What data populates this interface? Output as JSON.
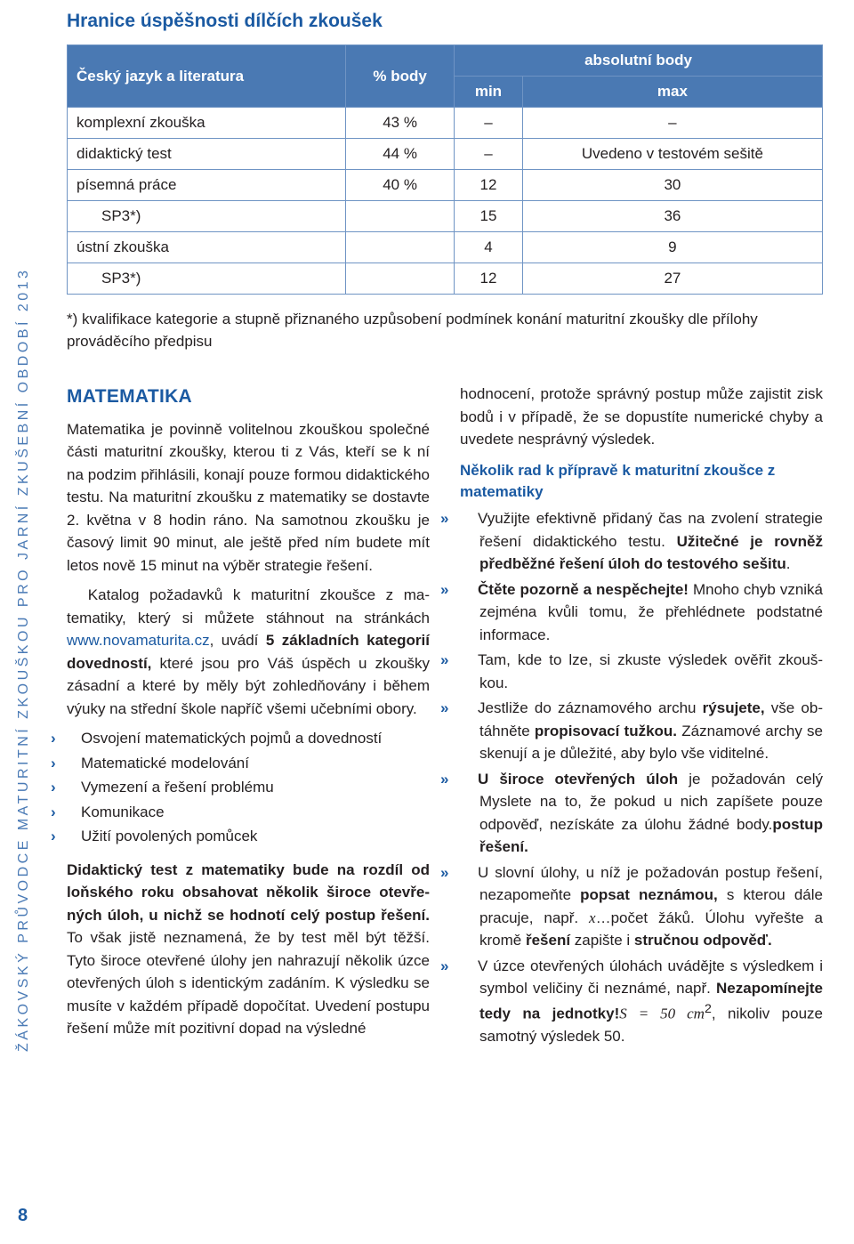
{
  "sidebar": "ŽÁKOVSKÝ PRŮVODCE MATURITNÍ ZKOUŠKOU PRO JARNÍ ZKUŠEBNÍ OBDOBÍ 2013",
  "page_number": "8",
  "section_title": "Hranice úspěšnosti dílčích zkoušek",
  "table": {
    "header_color": "#4a79b3",
    "border_color": "#6f94c4",
    "head": {
      "col1": "Český jazyk a literatura",
      "col2": "% body",
      "col3_top": "absolutní body",
      "col3_min": "min",
      "col3_max": "max"
    },
    "rows": [
      {
        "label": "komplexní zkouška",
        "pct": "43 %",
        "min": "–",
        "max": "–",
        "indent": false
      },
      {
        "label": "didaktický test",
        "pct": "44 %",
        "min": "–",
        "max": "Uvedeno v testovém sešitě",
        "indent": false
      },
      {
        "label": "písemná práce",
        "pct": "40 %",
        "min": "12",
        "max": "30",
        "indent": false
      },
      {
        "label": "SP3*)",
        "pct": "",
        "min": "15",
        "max": "36",
        "indent": true
      },
      {
        "label": "ústní zkouška",
        "pct": "",
        "min": "4",
        "max": "9",
        "indent": false
      },
      {
        "label": "SP3*)",
        "pct": "",
        "min": "12",
        "max": "27",
        "indent": true
      }
    ]
  },
  "footnote": "*) kvalifikace kategorie a stupně přiznaného uzpůsobení podmínek konání maturitní zkoušky dle přílohy prováděcího předpisu",
  "left": {
    "heading": "MATEMATIKA",
    "p1a": "Matematika je povinně volitelnou zkouškou spo­lečné části maturitní zkoušky, kterou ti z Vás, kteří se k ní na podzim přihlásili, konají pouze formou didak­tického testu. Na maturitní zkoušku z matematiky se dostavte 2. května v 8 hodin ráno. Na samotnou zkoušku je časový limit 90 minut, ale ještě před ním budete mít letos nově 15 minut na výběr strategie řešení.",
    "p1b_pre": "Katalog požadavků k maturitní zkoušce z ma­tematiky, který si můžete stáhnout na stránkách ",
    "p1b_link": "www.novamaturita.cz",
    "p1b_post1": ", uvádí ",
    "p1b_bold": "5 základních katego­rií dovedností,",
    "p1b_post2": " které jsou pro Váš úspěch u zkoušky zásadní a které by měly být zohledňovány i během výuky na střední škole napříč všemi učebními obory.",
    "bullets": [
      "Osvojení matematických pojmů a dovedností",
      "Matematické modelování",
      "Vymezení a řešení problému",
      "Komunikace",
      "Užití povolených pomůcek"
    ],
    "p2_bold": "Didaktický test z matematiky bude na rozdíl od loňského roku obsahovat několik široce otevře­ných úloh, u nichž se hodnotí celý postup řešení.",
    "p2_rest": " To však jistě neznamená, že by test měl být těžší. Tyto široce otevřené úlohy jen nahrazují několik úzce otevřených úloh s identickým zadáním. K výsledku se musíte v každém případě dopočítat. Uvedení po­stupu řešení může mít pozitivní dopad na výsledné"
  },
  "right": {
    "p_cont": "hodnocení, protože správný postup může zajistit zisk bodů i v případě, že se dopustíte numerické chyby a uvedete nesprávný výsledek.",
    "subhead": "Několik rad k přípravě k maturitní zkoušce z matematiky",
    "tips": [
      {
        "pre": "Využijte efektivně přidaný čas na zvolení strate­gie řešení didaktického testu. ",
        "bold": "Užitečné je rovněž předběžné řešení úloh do testového sešitu",
        "post": "."
      },
      {
        "bold_first": "Čtěte pozorně a nespěchejte!",
        "post": " Mnoho chyb vzniká zejména kvůli tomu, že přehlédnete pod­statné informace."
      },
      {
        "pre": "Tam, kde to lze, si zkuste výsledek ověřit zkouš­kou.",
        "bold": "",
        "post": ""
      },
      {
        "pre": "Jestliže do záznamového archu ",
        "bold": "rýsujete,",
        "post": " vše ob­táhněte ",
        "bold2": "propisovací tužkou.",
        "post2": " Záznamové archy se skenují a je důležité, aby bylo vše viditelné."
      },
      {
        "bold_first": "U široce otevřených úloh",
        "mid": " je požadován celý ",
        "bold2": "po­stup řešení.",
        "post": " Myslete na to, že pokud u nich za­píšete pouze odpověď, nezískáte za úlohu žádné body."
      },
      {
        "pre": "U slovní úlohy, u níž je požadován postup ře­šení, nezapomeňte ",
        "bold": "popsat neznámou,",
        "post": " s kterou dále pracuje, např. ",
        "math": "x",
        "post_math": "…počet žáků. Úlohu vyřešte a kromě ",
        "bold2": "řešení",
        "post2": " zapište i ",
        "bold3": "stručnou odpověď."
      },
      {
        "pre": "V úzce otevřených úlohách uvádějte s vý­sledkem i symbol veličiny či neznámé, např. ",
        "math": "S = 50 cm",
        "sup": "2",
        "post_math": ", nikoliv pouze samotný výsledek 50. ",
        "bold": "Nezapomínejte tedy na jednotky!"
      }
    ]
  }
}
